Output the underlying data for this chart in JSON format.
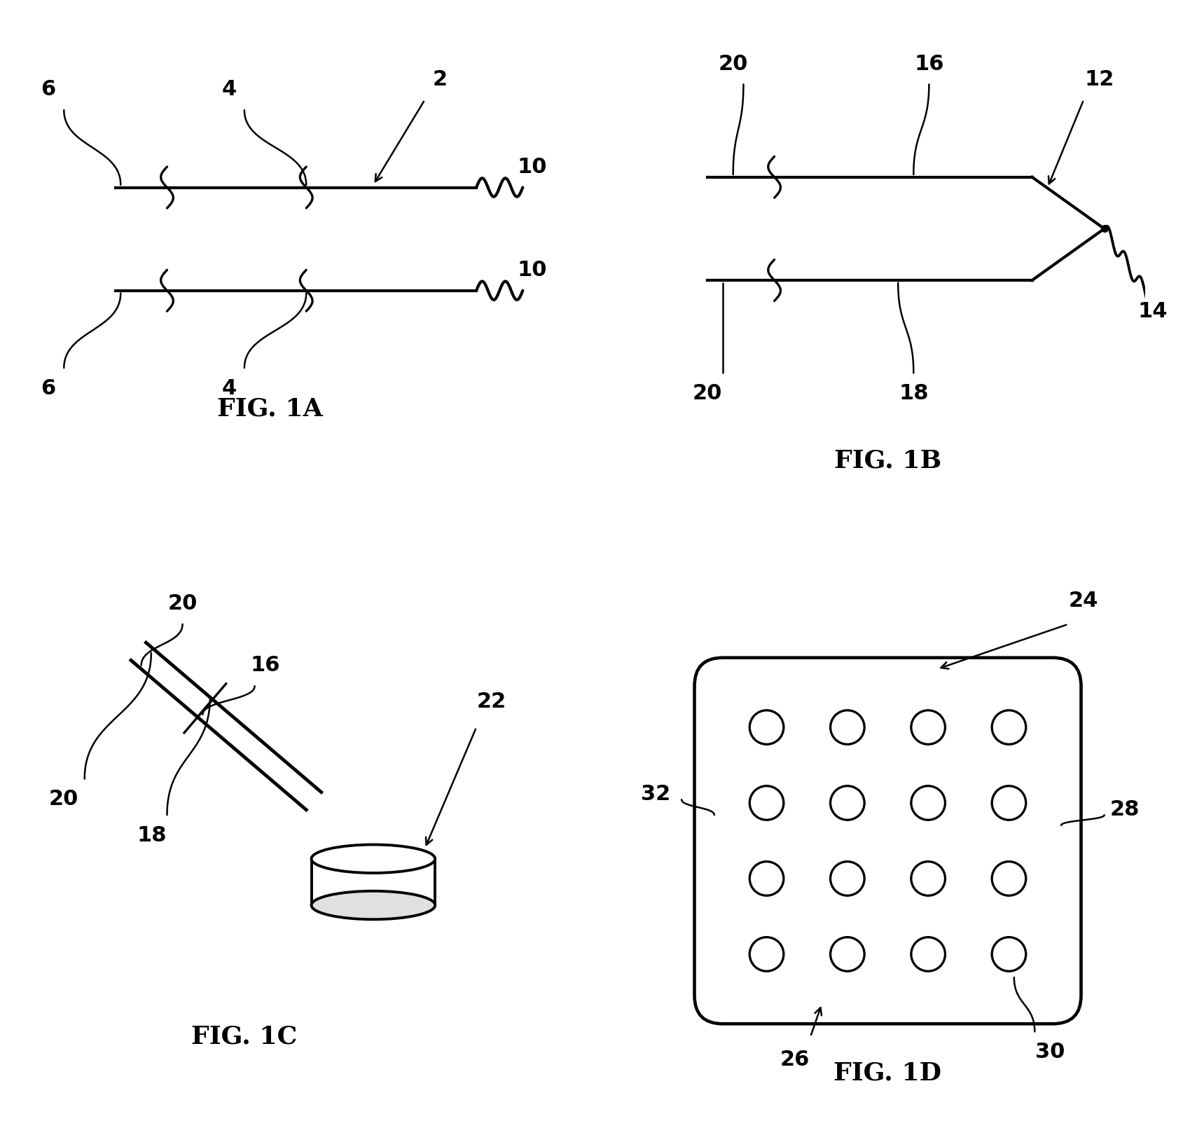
{
  "bg_color": "#ffffff",
  "line_color": "#000000",
  "fig_label_fontsize": 26,
  "ref_num_fontsize": 22,
  "line_width": 2.8,
  "fig1a_label": "FIG. 1A",
  "fig1b_label": "FIG. 1B",
  "fig1c_label": "FIG. 1C",
  "fig1d_label": "FIG. 1D",
  "wire_lw": 3.0,
  "leader_lw": 1.8
}
